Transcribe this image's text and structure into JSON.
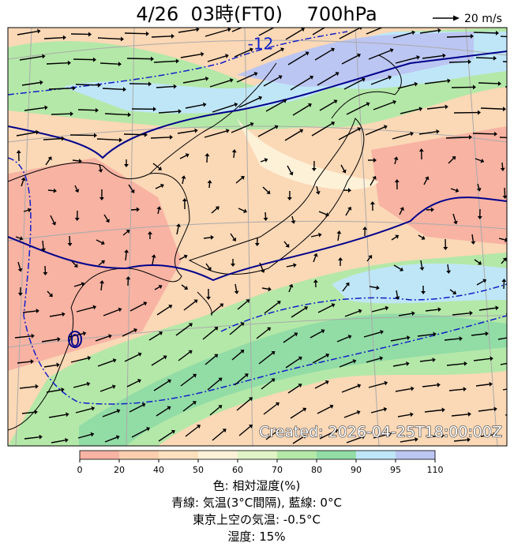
{
  "header": {
    "title": "4/26  03時(FT0)    700hPa",
    "legend_vector": "20 m/s"
  },
  "map": {
    "stamp": "Created: 2026-04-25T18:00:00Z",
    "contour_labels": [
      "-12",
      "0"
    ]
  },
  "colorbar": {
    "levels": [
      0,
      20,
      40,
      50,
      60,
      70,
      80,
      90,
      95,
      110
    ],
    "colors": [
      "#f8b3a3",
      "#fbcfae",
      "#fde0bd",
      "#fdf1d8",
      "#dff3c6",
      "#b4e8a8",
      "#92dca6",
      "#bfe6f7",
      "#bcc6f2"
    ]
  },
  "caption": [
    "色: 相対湿度(%)",
    "青線: 気温(3°C間隔), 藍線: 0°C",
    "東京上空の気温: -0.5°C",
    "湿度: 15%"
  ]
}
